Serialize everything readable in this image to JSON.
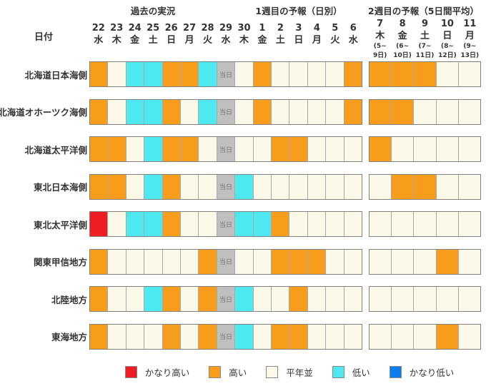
{
  "chart_data": {
    "type": "heatmap",
    "sections": [
      {
        "title": "過去の実況"
      },
      {
        "title": "1週目の予報（日別）"
      },
      {
        "title": "2週目の予報（5日間平均）"
      }
    ],
    "date_label": "日付",
    "today_label": "当日",
    "days_block1": [
      {
        "num": "22",
        "wd": "水"
      },
      {
        "num": "23",
        "wd": "木"
      },
      {
        "num": "24",
        "wd": "金"
      },
      {
        "num": "25",
        "wd": "土"
      },
      {
        "num": "26",
        "wd": "日"
      },
      {
        "num": "27",
        "wd": "月"
      },
      {
        "num": "28",
        "wd": "火"
      },
      {
        "num": "29",
        "wd": "水"
      },
      {
        "num": "30",
        "wd": "木"
      },
      {
        "num": "1",
        "wd": "金"
      },
      {
        "num": "2",
        "wd": "土"
      },
      {
        "num": "3",
        "wd": "日"
      },
      {
        "num": "4",
        "wd": "月"
      },
      {
        "num": "5",
        "wd": "火"
      },
      {
        "num": "6",
        "wd": "水"
      }
    ],
    "days_block2": [
      {
        "num": "7",
        "wd": "木",
        "r1": "(5~",
        "r2": "9日)"
      },
      {
        "num": "8",
        "wd": "金",
        "r1": "(6~",
        "r2": "10日)"
      },
      {
        "num": "9",
        "wd": "土",
        "r1": "(7~",
        "r2": "11日)"
      },
      {
        "num": "10",
        "wd": "日",
        "r1": "(8~",
        "r2": "12日)"
      },
      {
        "num": "11",
        "wd": "月",
        "r1": "(9~",
        "r2": "13日)"
      }
    ],
    "colors": {
      "very_high": "#EE1C23",
      "high": "#F89C1C",
      "normal": "#FDF9E8",
      "low": "#4DE8F0",
      "very_low": "#0C7EF0",
      "today_bg": "#BFBFBF",
      "today_text": "#757575"
    },
    "legend": [
      {
        "label": "かなり高い",
        "key": "very_high"
      },
      {
        "label": "高い",
        "key": "high"
      },
      {
        "label": "平年並",
        "key": "normal"
      },
      {
        "label": "低い",
        "key": "low"
      },
      {
        "label": "かなり低い",
        "key": "very_low"
      }
    ],
    "rows": [
      {
        "region": "北海道日本海側",
        "block1": [
          "high",
          "normal",
          "low",
          "low",
          "high",
          "high",
          "low",
          "today",
          "normal",
          "high",
          "normal",
          "normal",
          "normal",
          "normal",
          "high"
        ],
        "block2": [
          "high",
          "high",
          "high",
          "normal",
          "normal"
        ]
      },
      {
        "region": "北海道オホーツク海側",
        "block1": [
          "high",
          "normal",
          "low",
          "low",
          "high",
          "normal",
          "low",
          "today",
          "normal",
          "high",
          "normal",
          "normal",
          "normal",
          "normal",
          "high"
        ],
        "block2": [
          "high",
          "high",
          "normal",
          "normal",
          "normal"
        ]
      },
      {
        "region": "北海道太平洋側",
        "block1": [
          "high",
          "high",
          "normal",
          "low",
          "high",
          "high",
          "normal",
          "today",
          "normal",
          "normal",
          "high",
          "high",
          "normal",
          "normal",
          "normal"
        ],
        "block2": [
          "high",
          "normal",
          "normal",
          "normal",
          "normal"
        ]
      },
      {
        "region": "東北日本海側",
        "block1": [
          "high",
          "high",
          "normal",
          "low",
          "high",
          "normal",
          "normal",
          "today",
          "low",
          "normal",
          "normal",
          "normal",
          "normal",
          "normal",
          "normal"
        ],
        "block2": [
          "normal",
          "high",
          "high",
          "normal",
          "normal"
        ]
      },
      {
        "region": "東北太平洋側",
        "block1": [
          "very_high",
          "normal",
          "low",
          "low",
          "high",
          "normal",
          "normal",
          "today",
          "low",
          "low",
          "high",
          "normal",
          "normal",
          "normal",
          "normal"
        ],
        "block2": [
          "normal",
          "normal",
          "normal",
          "normal",
          "normal"
        ]
      },
      {
        "region": "関東甲信地方",
        "block1": [
          "high",
          "normal",
          "normal",
          "normal",
          "normal",
          "normal",
          "high",
          "today",
          "normal",
          "normal",
          "high",
          "high",
          "high",
          "normal",
          "normal"
        ],
        "block2": [
          "normal",
          "normal",
          "normal",
          "high",
          "normal"
        ]
      },
      {
        "region": "北陸地方",
        "block1": [
          "high",
          "normal",
          "normal",
          "low",
          "high",
          "normal",
          "high",
          "today",
          "low",
          "normal",
          "normal",
          "high",
          "normal",
          "normal",
          "normal"
        ],
        "block2": [
          "normal",
          "normal",
          "normal",
          "normal",
          "normal"
        ]
      },
      {
        "region": "東海地方",
        "block1": [
          "high",
          "normal",
          "normal",
          "normal",
          "high",
          "normal",
          "high",
          "today",
          "low",
          "normal",
          "high",
          "high",
          "normal",
          "normal",
          "normal"
        ],
        "block2": [
          "normal",
          "normal",
          "normal",
          "high",
          "normal"
        ]
      }
    ]
  }
}
